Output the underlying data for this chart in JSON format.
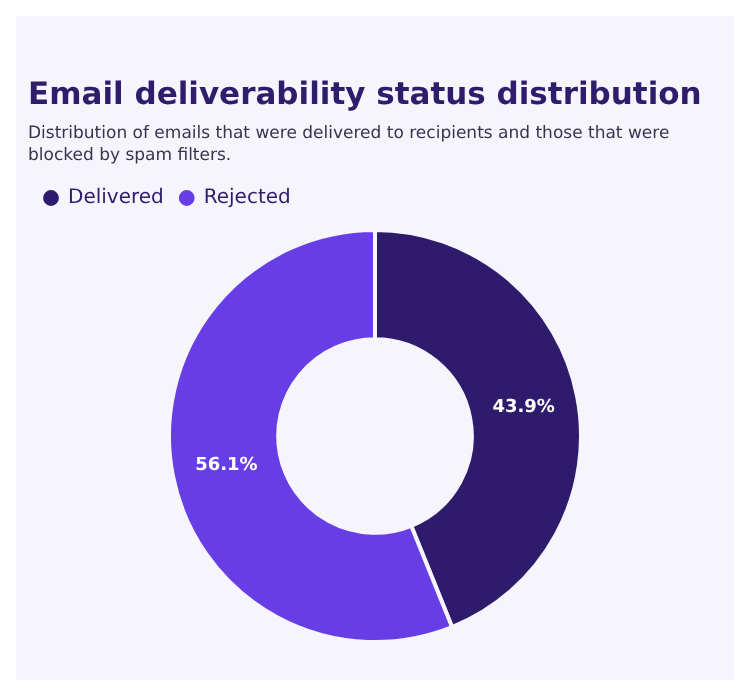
{
  "chart_data": {
    "type": "donut",
    "title": "Email deliverability status distribution",
    "subtitle": "Distribution of emails that were delivered to recipients and those that were blocked by spam filters.",
    "categories": [
      "Delivered",
      "Rejected"
    ],
    "values": [
      43.9,
      56.1
    ],
    "colors": [
      "#2f1b6b",
      "#673de6"
    ],
    "value_labels": [
      "43.9%",
      "56.1%"
    ],
    "legend": "top left"
  }
}
